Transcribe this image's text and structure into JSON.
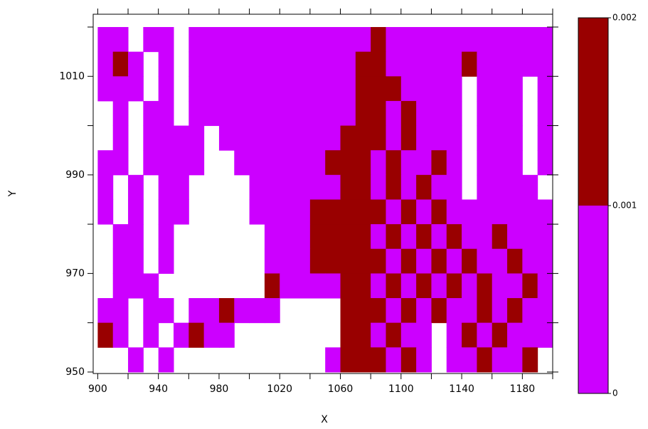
{
  "chart_data": {
    "type": "heatmap",
    "xlabel": "X",
    "ylabel": "Y",
    "x": [
      900,
      910,
      920,
      930,
      940,
      950,
      960,
      970,
      980,
      990,
      1000,
      1010,
      1020,
      1030,
      1040,
      1050,
      1060,
      1070,
      1080,
      1090,
      1100,
      1110,
      1120,
      1130,
      1140,
      1150,
      1160,
      1170,
      1180,
      1190
    ],
    "y": [
      1015,
      1010,
      1005,
      1000,
      995,
      990,
      985,
      980,
      975,
      970,
      965,
      960,
      955,
      950
    ],
    "z": [
      [
        0,
        0,
        null,
        0,
        0,
        null,
        0,
        0,
        0,
        0,
        0,
        0,
        0,
        0,
        0,
        0,
        0,
        0,
        0.001,
        0,
        0,
        0,
        0,
        0,
        0,
        0,
        0,
        0,
        0,
        0
      ],
      [
        0,
        0.001,
        0,
        null,
        0,
        null,
        0,
        0,
        0,
        0,
        0,
        0,
        0,
        0,
        0,
        0,
        0,
        0.001,
        0.001,
        0,
        0,
        0,
        0,
        0,
        0.001,
        0,
        0,
        0,
        0,
        0
      ],
      [
        0,
        0,
        0,
        null,
        0,
        null,
        0,
        0,
        0,
        0,
        0,
        0,
        0,
        0,
        0,
        0,
        0,
        0.001,
        0.001,
        0.001,
        0,
        0,
        0,
        0,
        null,
        0,
        0,
        0,
        null,
        0
      ],
      [
        null,
        0,
        null,
        0,
        0,
        null,
        0,
        0,
        0,
        0,
        0,
        0,
        0,
        0,
        0,
        0,
        0,
        0.001,
        0.001,
        0,
        0.001,
        0,
        0,
        0,
        null,
        0,
        0,
        0,
        null,
        0
      ],
      [
        null,
        0,
        null,
        0,
        0,
        0,
        0,
        null,
        0,
        0,
        0,
        0,
        0,
        0,
        0,
        0,
        0.001,
        0.001,
        0.001,
        0,
        0.001,
        0,
        0,
        0,
        null,
        0,
        0,
        0,
        null,
        0
      ],
      [
        0,
        0,
        null,
        0,
        0,
        0,
        0,
        null,
        null,
        0,
        0,
        0,
        0,
        0,
        0,
        0.001,
        0.001,
        0.001,
        0,
        0.001,
        0,
        0,
        0.001,
        0,
        null,
        0,
        0,
        0,
        null,
        0
      ],
      [
        0,
        null,
        0,
        null,
        0,
        0,
        null,
        null,
        null,
        null,
        0,
        0,
        0,
        0,
        0,
        0,
        0.001,
        0.001,
        0,
        0.001,
        0,
        0.001,
        0,
        0,
        null,
        0,
        0,
        0,
        0,
        null
      ],
      [
        0,
        null,
        0,
        null,
        0,
        0,
        null,
        null,
        null,
        null,
        0,
        0,
        0,
        0,
        0.001,
        0.001,
        0.001,
        0.001,
        0.001,
        0,
        0.001,
        0,
        0.001,
        0,
        0,
        0,
        0,
        0,
        0,
        0
      ],
      [
        null,
        0,
        0,
        null,
        0,
        null,
        null,
        null,
        null,
        null,
        null,
        0,
        0,
        0,
        0.001,
        0.001,
        0.001,
        0.001,
        0,
        0.001,
        0,
        0.001,
        0,
        0.001,
        0,
        0,
        0.001,
        0,
        0,
        0
      ],
      [
        null,
        0,
        0,
        null,
        0,
        null,
        null,
        null,
        null,
        null,
        null,
        0,
        0,
        0,
        0.001,
        0.001,
        0.001,
        0.001,
        0.001,
        0,
        0.001,
        0,
        0.001,
        0,
        0.001,
        0,
        0,
        0.001,
        0,
        0
      ],
      [
        null,
        0,
        0,
        0,
        null,
        null,
        null,
        null,
        null,
        null,
        null,
        0.001,
        0,
        0,
        0,
        0,
        0.001,
        0.001,
        0,
        0.001,
        0,
        0.001,
        0,
        0.001,
        0,
        0.001,
        0,
        0,
        0.001,
        0
      ],
      [
        0,
        0,
        null,
        0,
        0,
        null,
        0,
        0,
        0.001,
        0,
        0,
        0,
        null,
        null,
        null,
        null,
        0.001,
        0.001,
        0.001,
        0,
        0.001,
        0,
        0.001,
        0,
        0,
        0.001,
        0,
        0.001,
        0,
        0
      ],
      [
        0.001,
        0,
        null,
        0,
        null,
        0,
        0.001,
        0,
        0,
        null,
        null,
        null,
        null,
        null,
        null,
        null,
        0.001,
        0.001,
        0,
        0.001,
        0,
        0,
        null,
        0,
        0.001,
        0,
        0.001,
        0,
        0,
        0
      ],
      [
        null,
        null,
        0,
        null,
        0,
        null,
        null,
        null,
        null,
        null,
        null,
        null,
        null,
        null,
        null,
        0,
        0.001,
        0.001,
        0.001,
        0,
        0.001,
        0,
        null,
        0,
        0,
        0.001,
        0,
        0,
        0.001,
        null
      ]
    ],
    "xlim": [
      897,
      1200
    ],
    "ylim": [
      949.7,
      1022.6
    ],
    "xticks": [
      900,
      940,
      980,
      1020,
      1060,
      1100,
      1140,
      1180
    ],
    "xminorticks": [
      920,
      960,
      1000,
      1040,
      1080,
      1120,
      1160,
      1200
    ],
    "yticks": [
      950,
      970,
      990,
      1010
    ],
    "yminorticks": [
      960,
      980,
      1000,
      1020
    ],
    "colorbar": {
      "ticks": [
        0,
        0.001,
        0.002
      ],
      "colors": [
        "#cc00ff",
        "#990000"
      ]
    }
  }
}
